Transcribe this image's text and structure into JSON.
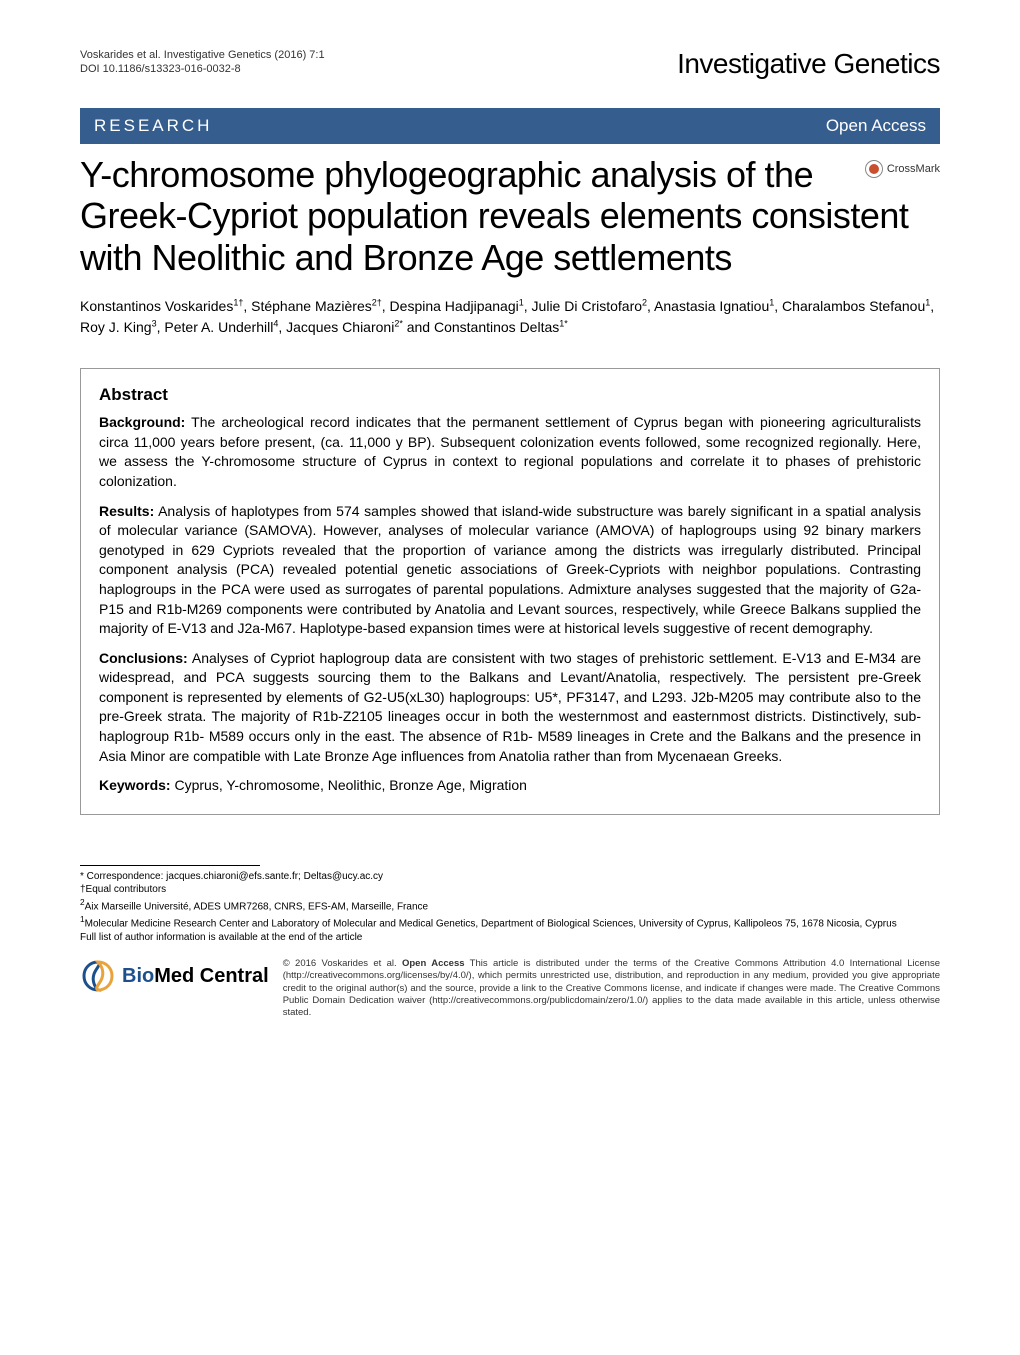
{
  "header": {
    "citation_line1": "Voskarides et al. Investigative Genetics  (2016) 7:1",
    "citation_line2": "DOI 10.1186/s13323-016-0032-8",
    "journal_brand": "Investigative Genetics"
  },
  "banner": {
    "left": "RESEARCH",
    "right": "Open Access"
  },
  "crossmark_label": "CrossMark",
  "title": "Y-chromosome phylogeographic analysis of the Greek-Cypriot population reveals elements consistent with Neolithic and Bronze Age settlements",
  "authors_html": "Konstantinos Voskarides<sup>1†</sup>, Stéphane Mazières<sup>2†</sup>, Despina Hadjipanagi<sup>1</sup>, Julie Di Cristofaro<sup>2</sup>, Anastasia Ignatiou<sup>1</sup>, Charalambos Stefanou<sup>1</sup>, Roy J. King<sup>3</sup>, Peter A. Underhill<sup>4</sup>, Jacques Chiaroni<sup>2*</sup> and Constantinos Deltas<sup>1*</sup>",
  "abstract": {
    "heading": "Abstract",
    "background_label": "Background:",
    "background_text": " The archeological record indicates that the permanent settlement of Cyprus began with pioneering agriculturalists circa 11,000 years before present, (ca. 11,000 y BP). Subsequent colonization events followed, some recognized regionally. Here, we assess the Y-chromosome structure of Cyprus in context to regional populations and correlate it to phases of prehistoric colonization.",
    "results_label": "Results:",
    "results_text": " Analysis of haplotypes from 574 samples showed that island-wide substructure was barely significant in a spatial analysis of molecular variance (SAMOVA). However, analyses of molecular variance (AMOVA) of haplogroups using 92 binary markers genotyped in 629 Cypriots revealed that the proportion of variance among the districts was irregularly distributed. Principal component analysis (PCA) revealed potential genetic associations of Greek-Cypriots with neighbor populations. Contrasting haplogroups in the PCA were used as surrogates of parental populations. Admixture analyses suggested that the majority of G2a-P15 and R1b-M269 components were contributed by Anatolia and Levant sources, respectively, while Greece Balkans supplied the majority of E-V13 and J2a-M67. Haplotype-based expansion times were at historical levels suggestive of recent demography.",
    "conclusions_label": "Conclusions:",
    "conclusions_text": " Analyses of Cypriot haplogroup data are consistent with two stages of prehistoric settlement. E-V13 and E-M34 are widespread, and PCA suggests sourcing them to the Balkans and Levant/Anatolia, respectively. The persistent pre-Greek component is represented by elements of G2-U5(xL30) haplogroups: U5*, PF3147, and L293. J2b-M205 may contribute also to the pre-Greek strata. The majority of R1b-Z2105 lineages occur in both the westernmost and easternmost districts. Distinctively, sub-haplogroup R1b- M589 occurs only in the east. The absence of R1b- M589 lineages in Crete and the Balkans and the presence in Asia Minor are compatible with Late Bronze Age influences from Anatolia rather than from Mycenaean Greeks.",
    "keywords_label": "Keywords:",
    "keywords_text": " Cyprus, Y-chromosome, Neolithic, Bronze Age, Migration"
  },
  "footnotes": {
    "correspondence": "* Correspondence: jacques.chiaroni@efs.sante.fr; Deltas@ucy.ac.cy",
    "equal": "†Equal contributors",
    "aff2": "2Aix Marseille Université, ADES UMR7268, CNRS, EFS-AM, Marseille, France",
    "aff1": "1Molecular Medicine Research Center and Laboratory of Molecular and Medical Genetics, Department of Biological Sciences, University of Cyprus, Kallipoleos 75, 1678 Nicosia, Cyprus",
    "full_list": "Full list of author information is available at the end of the article"
  },
  "footer": {
    "bmc_label_bio": "Bio",
    "bmc_label_med": "Med",
    "bmc_label_central": " Central",
    "license": "© 2016 Voskarides et al. Open Access This article is distributed under the terms of the Creative Commons Attribution 4.0 International License (http://creativecommons.org/licenses/by/4.0/), which permits unrestricted use, distribution, and reproduction in any medium, provided you give appropriate credit to the original author(s) and the source, provide a link to the Creative Commons license, and indicate if changes were made. The Creative Commons Public Domain Dedication waiver (http://creativecommons.org/publicdomain/zero/1.0/) applies to the data made available in this article, unless otherwise stated."
  },
  "colors": {
    "banner_bg": "#355e8f",
    "banner_fg": "#ffffff",
    "crossmark_dot": "#c94f2f",
    "bmc_blue": "#1d4f8c",
    "text": "#000000",
    "page_bg": "#ffffff",
    "border": "#999999"
  },
  "typography": {
    "title_size": 36,
    "journal_brand_size": 28,
    "banner_size": 17,
    "body_size": 14,
    "footnote_size": 10,
    "license_size": 9.5
  }
}
